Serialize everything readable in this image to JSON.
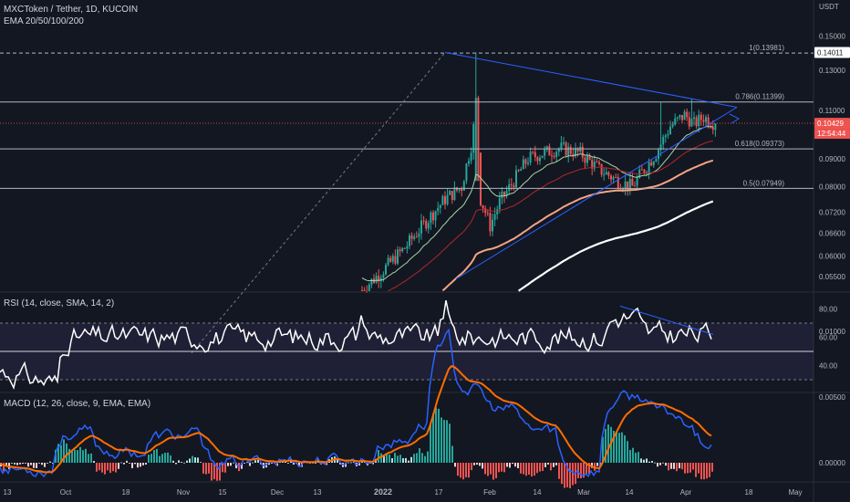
{
  "header": {
    "symbol_line": "MXCToken / Tether, 1D, KUCOIN",
    "indicator_line": "EMA 20/50/100/200",
    "currency": "USDT"
  },
  "rsi_label": "RSI (14, close, SMA, 14, 2)",
  "macd_label": "MACD (12, 26, close, 9, EMA, EMA)",
  "colors": {
    "background": "#131722",
    "up": "#26a69a",
    "down": "#ef5350",
    "trendline": "#2962ff",
    "ema20": "#a5d6a7",
    "ema50": "#b2282a",
    "ema100": "#f4a582",
    "ema200": "#ffffff",
    "macd": "#2962ff",
    "signal": "#ff6d00",
    "rsi": "#ffffff",
    "price_tag": "#ef5350"
  },
  "chart_data": [
    {
      "type": "candlestick",
      "title": "MXCToken / Tether, 1D, KUCOIN",
      "ylabel": "USDT",
      "y_ticks": [
        "0.15000",
        "0.13000",
        "0.11000",
        "0.09000",
        "0.08000",
        "0.07200",
        "0.06600",
        "0.06000",
        "0.05500"
      ],
      "x_ticks": [
        "13",
        "Oct",
        "18",
        "Nov",
        "15",
        "Dec",
        "13",
        "2022",
        "17",
        "Feb",
        "14",
        "Mar",
        "14",
        "Apr",
        "18",
        "May"
      ],
      "fib_levels": [
        {
          "label": "1(0.13981)",
          "value": 0.13981
        },
        {
          "label": "0.786(0.11399)",
          "value": 0.11399
        },
        {
          "label": "0.618(0.09373)",
          "value": 0.09373
        },
        {
          "label": "0.5(0.07949)",
          "value": 0.07949
        }
      ],
      "price_labels": [
        {
          "text": "0.14011",
          "value": 0.14011
        },
        {
          "text": "0.10429",
          "value": 0.10429
        }
      ],
      "countdown": "12:54:44",
      "series": [
        {
          "name": "EMA 20"
        },
        {
          "name": "EMA 50"
        },
        {
          "name": "EMA 100"
        },
        {
          "name": "EMA 200"
        }
      ]
    },
    {
      "type": "line",
      "title": "RSI (14, close, SMA, 14, 2)",
      "y_ticks": [
        "80.00",
        "60.00",
        "40.00"
      ],
      "bands": [
        30,
        50,
        70
      ]
    },
    {
      "type": "bar",
      "title": "MACD (12, 26, close, 9, EMA, EMA)",
      "y_ticks": [
        "0.01000",
        "0.00500",
        "0.00000"
      ]
    }
  ]
}
